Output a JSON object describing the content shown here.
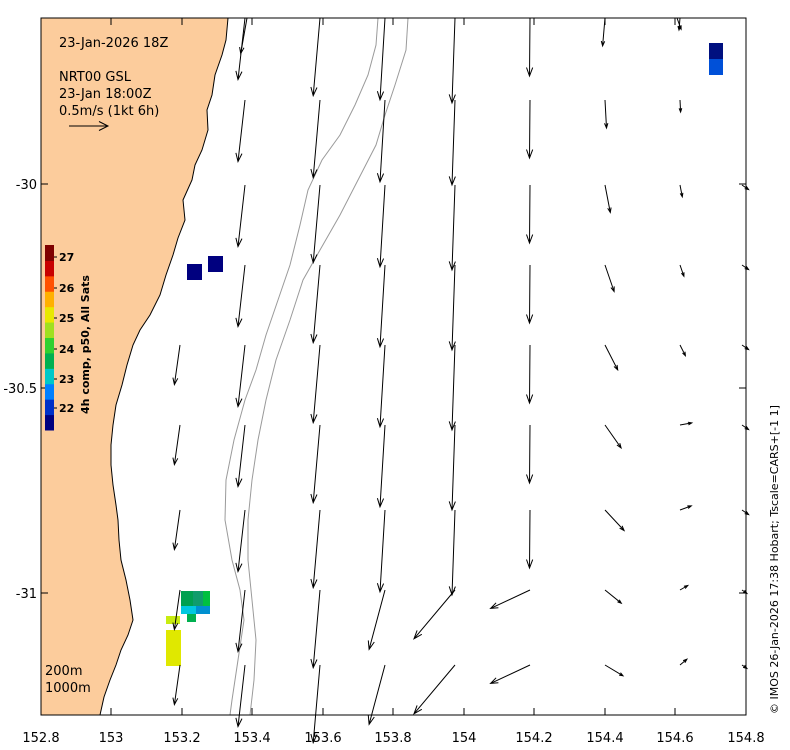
{
  "title": "23-Jan-2026 18Z",
  "legend": {
    "source": "NRT00 GSL",
    "time": "23-Jan 18:00Z",
    "scale": "0.5m/s (1kt 6h)"
  },
  "colorbar": {
    "label": "4h comp, p50, All Sats",
    "ticks": [
      "27",
      "26",
      "25",
      "24",
      "23",
      "22"
    ],
    "range": [
      21.6,
      27.4
    ],
    "colors": [
      "#00007f",
      "#0030c8",
      "#0080ff",
      "#00c8c8",
      "#00b050",
      "#30d030",
      "#a0e020",
      "#e8e800",
      "#ffb000",
      "#ff5000",
      "#c80000",
      "#7f0000"
    ]
  },
  "isobaths": [
    "200m",
    "1000m"
  ],
  "credit": "© IMOS 26-Jan-2026 17:38 Hobart; Tscale=CARS+[-1 1]",
  "axes": {
    "x_ticks": [
      "152.8",
      "153",
      "153.2",
      "153.4",
      "153.6",
      "153.8",
      "154",
      "154.2",
      "154.4",
      "154.6",
      "154.8"
    ],
    "y_ticks": [
      "-30",
      "-30.5",
      "-31"
    ]
  },
  "colors": {
    "land": "#fccc9c",
    "coast": "#000000",
    "isobath": "#9a9a9a",
    "frame": "#000000"
  }
}
